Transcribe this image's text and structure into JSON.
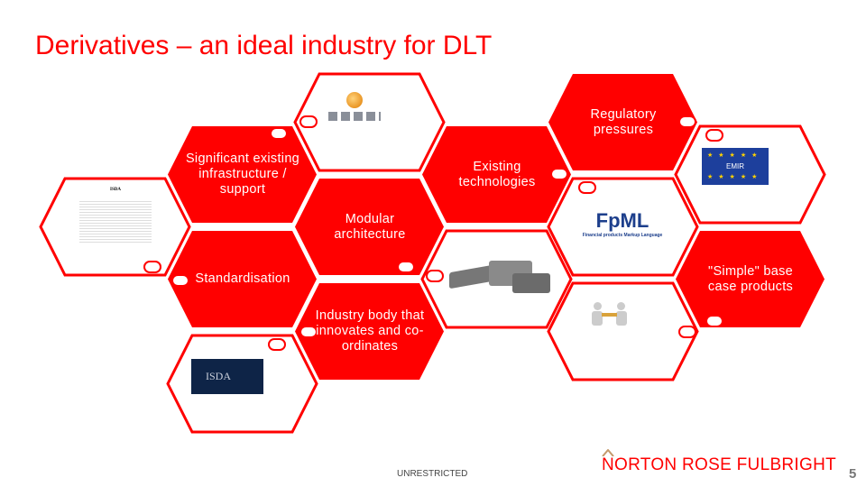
{
  "slide": {
    "title": "Derivatives – an ideal industry for DLT",
    "classification": "UNRESTRICTED",
    "brand": "NORTON ROSE FULBRIGHT",
    "page_number": "5",
    "accent_color": "#ff0000"
  },
  "hexagons": [
    {
      "label": "Significant existing infrastructure / support",
      "style": "filled"
    },
    {
      "label": "Standardisation",
      "style": "filled"
    },
    {
      "label": "Modular architecture",
      "style": "filled"
    },
    {
      "label": "Industry body that innovates and co-ordinates",
      "style": "filled"
    },
    {
      "label": "Existing technologies",
      "style": "filled"
    },
    {
      "label": "Regulatory pressures",
      "style": "filled"
    },
    {
      "label": "\"Simple\" base case products",
      "style": "filled"
    }
  ],
  "images": {
    "isda_document": "ISDA",
    "isda_logo": "ISDA",
    "network": "network-computers-image",
    "lego": "lego-bricks-image",
    "fpml": {
      "logo": "FpML",
      "tagline": "Financial products Markup Language"
    },
    "emir": "EMIR",
    "handshake": "handshake-figures-image"
  }
}
